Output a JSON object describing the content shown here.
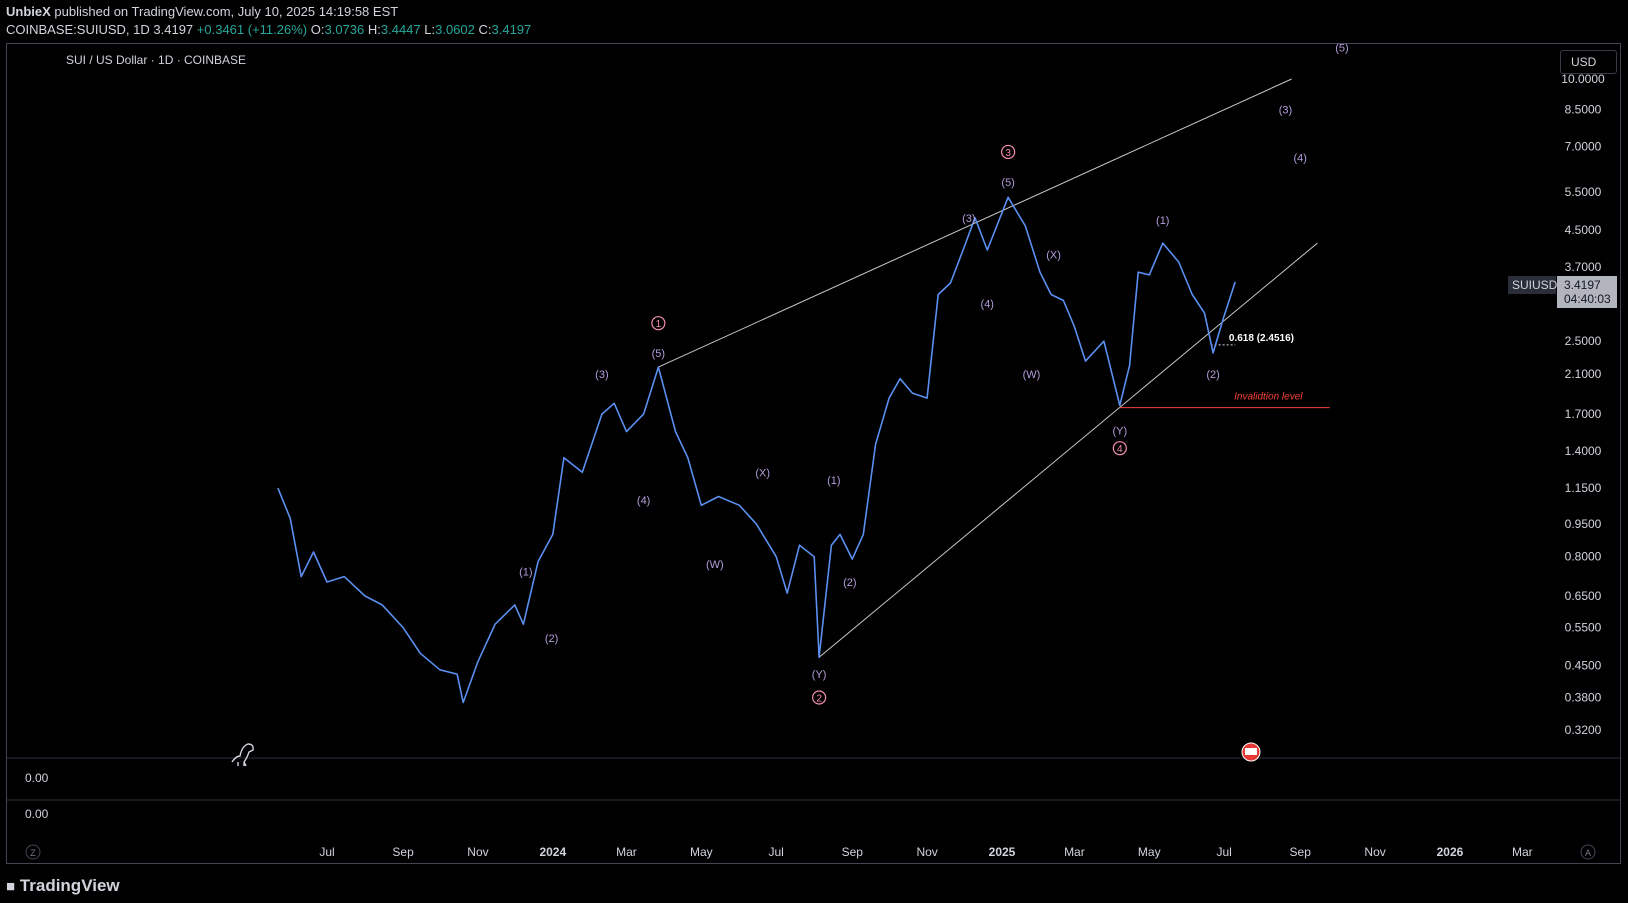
{
  "header": {
    "publisher": "UnbieX",
    "published_text": "published on TradingView.com, July 10, 2025 14:19:58 EST",
    "symbol": "COINBASE:SUIUSD, 1D",
    "last": "3.4197",
    "change": "+0.3461 (+11.26%)",
    "o_label": "O:",
    "o": "3.0736",
    "h_label": "H:",
    "h": "3.4447",
    "l_label": "L:",
    "l": "3.0602",
    "c_label": "C:",
    "c": "3.4197"
  },
  "chart_title": "SUI / US Dollar · 1D · COINBASE",
  "currency_button": "USD",
  "price_tag": {
    "symbol": "SUIUSD",
    "price": "3.4197",
    "countdown": "04:40:03"
  },
  "colors": {
    "up": "#26a69a",
    "series": "#5b8ff0",
    "wave": "#b39ddb",
    "major": "#f48fb1",
    "invalid": "#f44336",
    "grid": "#000000"
  },
  "footer": {
    "logo_text": "TradingView",
    "left_scale": "Z",
    "right_scale": "A"
  },
  "oscillator": {
    "value_1": "0.00",
    "value_2": "0.00"
  },
  "chart_data": {
    "type": "line",
    "title": "SUI / US Dollar · 1D · COINBASE",
    "y_scale": "log",
    "y_ticks": [
      10.0,
      8.5,
      7.0,
      5.5,
      4.5,
      3.7,
      2.5,
      2.1,
      1.7,
      1.4,
      1.15,
      0.95,
      0.8,
      0.65,
      0.55,
      0.45,
      0.38,
      0.32
    ],
    "y_tick_labels": [
      "10.0000",
      "8.5000",
      "7.0000",
      "5.5000",
      "4.5000",
      "3.7000",
      "2.5000",
      "2.1000",
      "1.7000",
      "1.4000",
      "1.1500",
      "0.9500",
      "0.8000",
      "0.6500",
      "0.5500",
      "0.4500",
      "0.3800",
      "0.3200"
    ],
    "x_tick_labels": [
      "Jul",
      "Sep",
      "Nov",
      "2024",
      "Mar",
      "May",
      "Jul",
      "Sep",
      "Nov",
      "2025",
      "Mar",
      "May",
      "Jul",
      "Sep",
      "Nov",
      "2026",
      "Mar"
    ],
    "series": [
      {
        "values_by_date": [
          [
            "2023-05-22",
            1.15
          ],
          [
            "2023-06-01",
            0.98
          ],
          [
            "2023-06-10",
            0.72
          ],
          [
            "2023-06-20",
            0.82
          ],
          [
            "2023-07-01",
            0.7
          ],
          [
            "2023-07-15",
            0.72
          ],
          [
            "2023-08-01",
            0.65
          ],
          [
            "2023-08-15",
            0.62
          ],
          [
            "2023-09-01",
            0.55
          ],
          [
            "2023-09-15",
            0.48
          ],
          [
            "2023-10-01",
            0.44
          ],
          [
            "2023-10-15",
            0.43
          ],
          [
            "2023-10-20",
            0.37
          ],
          [
            "2023-11-01",
            0.46
          ],
          [
            "2023-11-15",
            0.56
          ],
          [
            "2023-12-01",
            0.62
          ],
          [
            "2023-12-08",
            0.56
          ],
          [
            "2023-12-20",
            0.78
          ],
          [
            "2024-01-01",
            0.9
          ],
          [
            "2024-01-10",
            1.35
          ],
          [
            "2024-01-25",
            1.25
          ],
          [
            "2024-02-10",
            1.7
          ],
          [
            "2024-02-20",
            1.8
          ],
          [
            "2024-03-01",
            1.55
          ],
          [
            "2024-03-15",
            1.7
          ],
          [
            "2024-03-27",
            2.18
          ],
          [
            "2024-04-10",
            1.55
          ],
          [
            "2024-04-20",
            1.35
          ],
          [
            "2024-05-01",
            1.05
          ],
          [
            "2024-05-15",
            1.1
          ],
          [
            "2024-06-01",
            1.05
          ],
          [
            "2024-06-15",
            0.95
          ],
          [
            "2024-07-01",
            0.8
          ],
          [
            "2024-07-10",
            0.66
          ],
          [
            "2024-07-20",
            0.85
          ],
          [
            "2024-08-01",
            0.8
          ],
          [
            "2024-08-05",
            0.47
          ],
          [
            "2024-08-15",
            0.85
          ],
          [
            "2024-08-22",
            0.9
          ],
          [
            "2024-09-01",
            0.79
          ],
          [
            "2024-09-10",
            0.9
          ],
          [
            "2024-09-20",
            1.45
          ],
          [
            "2024-10-01",
            1.85
          ],
          [
            "2024-10-10",
            2.05
          ],
          [
            "2024-10-20",
            1.9
          ],
          [
            "2024-11-01",
            1.85
          ],
          [
            "2024-11-10",
            3.2
          ],
          [
            "2024-11-20",
            3.4
          ],
          [
            "2024-12-01",
            4.1
          ],
          [
            "2024-12-10",
            4.8
          ],
          [
            "2024-12-20",
            4.05
          ],
          [
            "2025-01-06",
            5.35
          ],
          [
            "2025-01-20",
            4.6
          ],
          [
            "2025-02-01",
            3.6
          ],
          [
            "2025-02-10",
            3.2
          ],
          [
            "2025-02-20",
            3.1
          ],
          [
            "2025-03-01",
            2.7
          ],
          [
            "2025-03-10",
            2.25
          ],
          [
            "2025-03-25",
            2.5
          ],
          [
            "2025-04-07",
            1.78
          ],
          [
            "2025-04-15",
            2.2
          ],
          [
            "2025-04-22",
            3.6
          ],
          [
            "2025-05-01",
            3.55
          ],
          [
            "2025-05-12",
            4.2
          ],
          [
            "2025-05-25",
            3.8
          ],
          [
            "2025-06-05",
            3.2
          ],
          [
            "2025-06-15",
            2.9
          ],
          [
            "2025-06-22",
            2.35
          ],
          [
            "2025-06-30",
            2.8
          ],
          [
            "2025-07-10",
            3.42
          ]
        ]
      }
    ],
    "trendlines": [
      {
        "from": [
          "2024-03-27",
          2.18
        ],
        "to": [
          "2025-08-25",
          10.0
        ]
      },
      {
        "from": [
          "2024-08-05",
          0.47
        ],
        "to": [
          "2025-09-15",
          4.2
        ]
      }
    ],
    "wave_labels": [
      {
        "text": "(1)",
        "date": "2023-12-10",
        "price": 0.74,
        "kind": "minor"
      },
      {
        "text": "(2)",
        "date": "2023-12-31",
        "price": 0.52,
        "kind": "minor"
      },
      {
        "text": "(3)",
        "date": "2024-02-10",
        "price": 2.1,
        "kind": "minor"
      },
      {
        "text": "(4)",
        "date": "2024-03-15",
        "price": 1.08,
        "kind": "minor"
      },
      {
        "text": "(5)",
        "date": "2024-03-27",
        "price": 2.35,
        "kind": "minor"
      },
      {
        "text": "1",
        "date": "2024-03-27",
        "price": 2.75,
        "kind": "major"
      },
      {
        "text": "(W)",
        "date": "2024-05-12",
        "price": 0.77,
        "kind": "minor"
      },
      {
        "text": "(X)",
        "date": "2024-06-20",
        "price": 1.25,
        "kind": "minor"
      },
      {
        "text": "(Y)",
        "date": "2024-08-05",
        "price": 0.43,
        "kind": "minor"
      },
      {
        "text": "2",
        "date": "2024-08-05",
        "price": 0.38,
        "kind": "major"
      },
      {
        "text": "(1)",
        "date": "2024-08-17",
        "price": 1.2,
        "kind": "minor"
      },
      {
        "text": "(2)",
        "date": "2024-08-30",
        "price": 0.7,
        "kind": "minor"
      },
      {
        "text": "(3)",
        "date": "2024-12-05",
        "price": 4.8,
        "kind": "minor"
      },
      {
        "text": "(4)",
        "date": "2024-12-20",
        "price": 3.05,
        "kind": "minor"
      },
      {
        "text": "(5)",
        "date": "2025-01-06",
        "price": 5.8,
        "kind": "minor"
      },
      {
        "text": "3",
        "date": "2025-01-06",
        "price": 6.8,
        "kind": "major"
      },
      {
        "text": "(W)",
        "date": "2025-01-25",
        "price": 2.1,
        "kind": "minor"
      },
      {
        "text": "(X)",
        "date": "2025-02-12",
        "price": 3.95,
        "kind": "minor"
      },
      {
        "text": "(Y)",
        "date": "2025-04-07",
        "price": 1.56,
        "kind": "minor"
      },
      {
        "text": "4",
        "date": "2025-04-07",
        "price": 1.42,
        "kind": "major"
      },
      {
        "text": "(1)",
        "date": "2025-05-12",
        "price": 4.75,
        "kind": "minor"
      },
      {
        "text": "(2)",
        "date": "2025-06-22",
        "price": 2.1,
        "kind": "minor"
      },
      {
        "text": "(3)",
        "date": "2025-08-20",
        "price": 8.5,
        "kind": "minor"
      },
      {
        "text": "(4)",
        "date": "2025-09-01",
        "price": 6.6,
        "kind": "minor"
      },
      {
        "text": "(5)",
        "date": "2025-10-05",
        "price": 11.8,
        "kind": "minor"
      }
    ],
    "annotations": [
      {
        "text": "0.618 (2.4516)",
        "date": "2025-06-30",
        "price": 2.4516
      },
      {
        "text": "Invalidtion level",
        "date": "2025-08-06",
        "price": 1.78
      }
    ],
    "invalidation_level": {
      "from": "2025-04-07",
      "to": "2025-09-25",
      "price": 1.76
    },
    "fib_level": {
      "from": "2025-06-20",
      "to": "2025-07-10",
      "price": 2.4516
    }
  }
}
